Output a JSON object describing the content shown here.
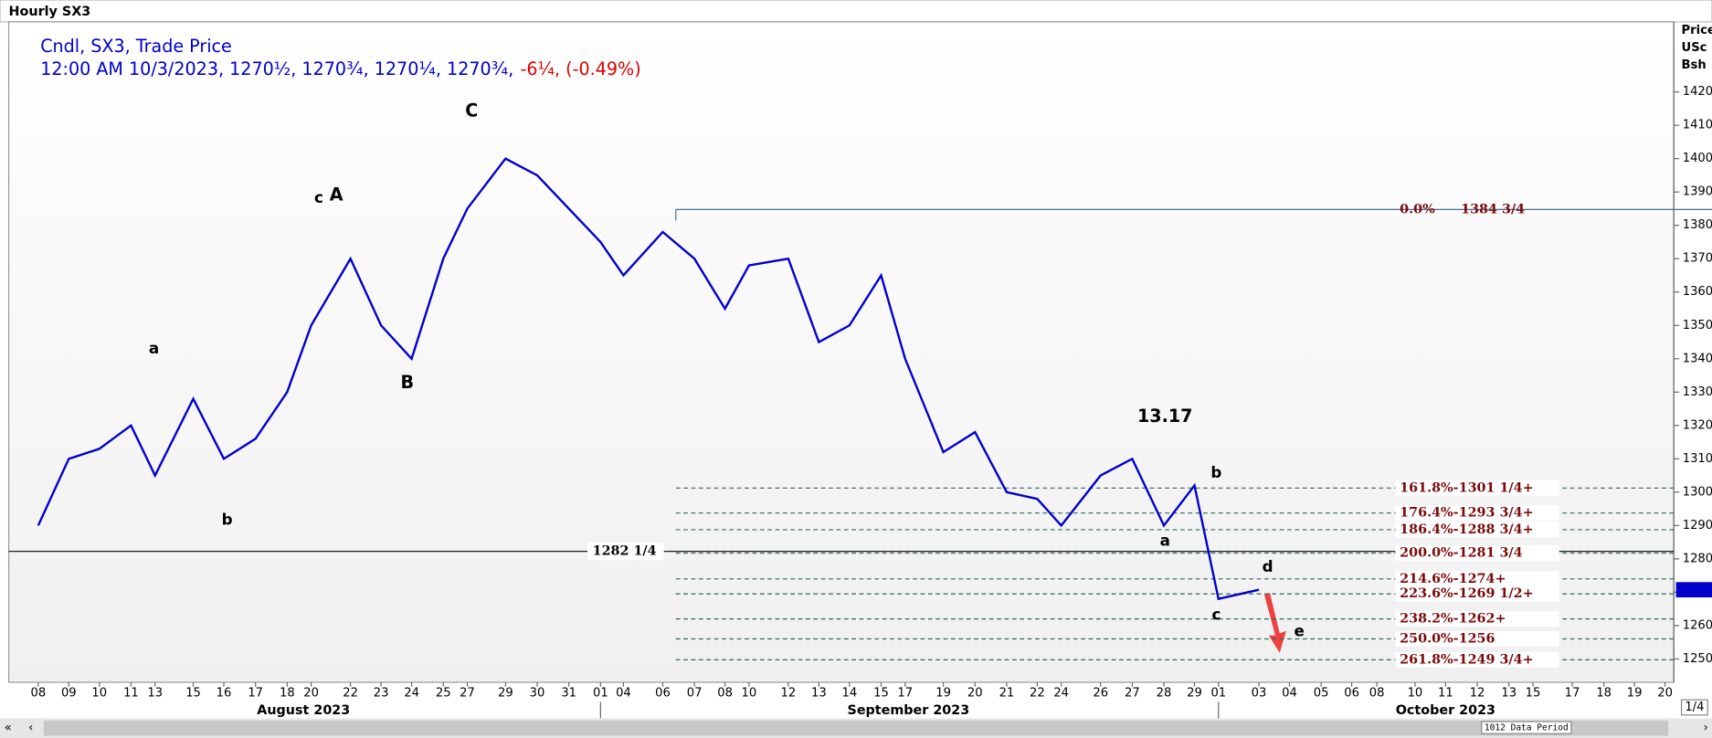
{
  "header": {
    "title": "Hourly SX3",
    "legend_line1": "Cndl, SX3, Trade Price",
    "legend_line2": "12:00 AM 10/3/2023, 1270½, 1270¾, 1270¼, 1270¾,",
    "change": "-6¼, (-0.49%)",
    "data_period": "1012 Data Period",
    "page": "1/4"
  },
  "chart_data": {
    "type": "line",
    "categories": [
      "08",
      "09",
      "10",
      "11",
      "13",
      "15",
      "16",
      "17",
      "18",
      "20",
      "22",
      "23",
      "24",
      "25",
      "27",
      "29",
      "30",
      "31",
      "01",
      "04",
      "06",
      "07",
      "08",
      "10",
      "12",
      "13",
      "14",
      "15",
      "17",
      "19",
      "20",
      "21",
      "22",
      "24",
      "26",
      "27",
      "28",
      "29",
      "01",
      "03",
      "04",
      "05",
      "06",
      "08",
      "10",
      "11",
      "12",
      "13",
      "15",
      "17",
      "18",
      "19",
      "20"
    ],
    "months": [
      "August 2023",
      "September 2023",
      "October 2023"
    ],
    "series": [
      {
        "name": "SX3",
        "color": "#0000cc",
        "values": [
          1290,
          1310,
          1313,
          1320,
          1305,
          1328,
          1310,
          1316,
          1330,
          1350,
          1370,
          1350,
          1340,
          1370,
          1385,
          1400,
          1395,
          1385,
          1375,
          1365,
          1378,
          1370,
          1355,
          1368,
          1370,
          1345,
          1350,
          1365,
          1340,
          1312,
          1318,
          1300,
          1298,
          1290,
          1305,
          1310,
          1290,
          1302,
          1268,
          1270.75,
          null,
          null,
          null,
          null,
          null,
          null,
          null,
          null,
          null,
          null,
          null,
          null,
          null
        ]
      }
    ],
    "ylim": [
      1243,
      1441
    ],
    "yticks": [
      1250,
      1260,
      1270,
      1280,
      1290,
      1300,
      1310,
      1320,
      1330,
      1340,
      1350,
      1360,
      1370,
      1380,
      1390,
      1400,
      1410,
      1420
    ],
    "y_axis_title": [
      "Price",
      "USc",
      "Bsh"
    ],
    "last_price": 1270.75,
    "support": {
      "value": 1282.25,
      "label": "1282 1/4"
    },
    "fib_levels": [
      {
        "ratio": "0.0%",
        "label": "1384 3/4",
        "value": 1384.75
      },
      {
        "label": "161.8%-1301 1/4+",
        "value": 1301.25
      },
      {
        "label": "176.4%-1293 3/4+",
        "value": 1293.75
      },
      {
        "label": "186.4%-1288 3/4+",
        "value": 1288.75
      },
      {
        "label": "200.0%-1281 3/4",
        "value": 1281.75
      },
      {
        "label": "214.6%-1274+",
        "value": 1274
      },
      {
        "label": "223.6%-1269 1/2+",
        "value": 1269.5
      },
      {
        "label": "238.2%-1262+",
        "value": 1262
      },
      {
        "label": "250.0%-1256",
        "value": 1256
      },
      {
        "label": "261.8%-1249 3/4+",
        "value": 1249.75
      }
    ],
    "wave_labels": [
      "a",
      "b",
      "c",
      "A",
      "B",
      "C",
      "13.17",
      "b",
      "a",
      "c",
      "d",
      "e"
    ]
  }
}
